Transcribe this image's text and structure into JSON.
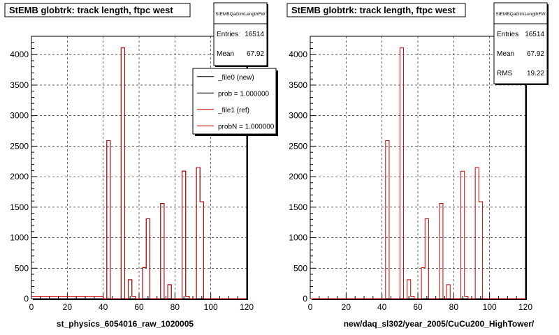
{
  "footer": {
    "text": ""
  },
  "chart_data": [
    {
      "type": "bar",
      "title": "StEMB globtrk: track length, ftpc west",
      "xlabel": "st_physics_6054016_raw_1020005",
      "ylabel": "",
      "xlim": [
        0,
        120
      ],
      "ylim": [
        0,
        4300
      ],
      "x_ticks": [
        0,
        20,
        40,
        60,
        80,
        100,
        120
      ],
      "y_ticks": [
        0,
        500,
        1000,
        1500,
        2000,
        2500,
        3000,
        3500,
        4000
      ],
      "grid": true,
      "stats": {
        "name": "StEMBQaGtrkLengthFW",
        "entries_label": "Entries",
        "entries": "16514",
        "mean_label": "Mean",
        "mean": "67.92"
      },
      "legend": {
        "position": "top-right",
        "entries": [
          {
            "label": "_file0 (new)",
            "color": "#000000"
          },
          {
            "label": "prob = 1.000000",
            "color": "#000000"
          },
          {
            "label": "_file1 (ref)",
            "color": "#cc0000"
          },
          {
            "label": "probN = 1.000000",
            "color": "#cc0000"
          }
        ]
      },
      "bin_width": 2,
      "baseline": 40,
      "series": [
        {
          "name": "_file0 (new)",
          "color": "#000000",
          "bins": [
            [
              42,
              2590
            ],
            [
              50,
              4110
            ],
            [
              54,
              310
            ],
            [
              56,
              40
            ],
            [
              62,
              510
            ],
            [
              64,
              1310
            ],
            [
              72,
              1560
            ],
            [
              76,
              230
            ],
            [
              84,
              2090
            ],
            [
              86,
              40
            ],
            [
              92,
              2150
            ],
            [
              94,
              1590
            ]
          ]
        },
        {
          "name": "_file1 (ref)",
          "color": "#cc0000",
          "bins": [
            [
              42,
              2590
            ],
            [
              50,
              4110
            ],
            [
              54,
              310
            ],
            [
              56,
              40
            ],
            [
              62,
              510
            ],
            [
              64,
              1310
            ],
            [
              72,
              1560
            ],
            [
              76,
              230
            ],
            [
              84,
              2090
            ],
            [
              86,
              40
            ],
            [
              92,
              2150
            ],
            [
              94,
              1590
            ]
          ]
        }
      ]
    },
    {
      "type": "bar",
      "title": "StEMB globtrk: track length, ftpc west",
      "xlabel": "new/daq_sl302/year_2005/CuCu200_HighTower/",
      "ylabel": "",
      "xlim": [
        0,
        120
      ],
      "ylim": [
        0,
        4300
      ],
      "x_ticks": [
        0,
        20,
        40,
        60,
        80,
        100,
        120
      ],
      "y_ticks": [
        0,
        500,
        1000,
        1500,
        2000,
        2500,
        3000,
        3500,
        4000
      ],
      "grid": true,
      "stats": {
        "name": "StEMBQaGtrkLengthFW",
        "entries_label": "Entries",
        "entries": "16514",
        "mean_label": "Mean",
        "mean": "67.92",
        "rms_label": "RMS",
        "rms": "19.22"
      },
      "bin_width": 2,
      "baseline": 0,
      "series": [
        {
          "name": "_file1 (ref)",
          "color": "#cc0000",
          "bins": [
            [
              42,
              2590
            ],
            [
              50,
              4110
            ],
            [
              54,
              310
            ],
            [
              56,
              40
            ],
            [
              62,
              510
            ],
            [
              64,
              1310
            ],
            [
              72,
              1560
            ],
            [
              76,
              230
            ],
            [
              84,
              2090
            ],
            [
              86,
              40
            ],
            [
              92,
              2150
            ],
            [
              94,
              1590
            ]
          ]
        }
      ]
    }
  ]
}
